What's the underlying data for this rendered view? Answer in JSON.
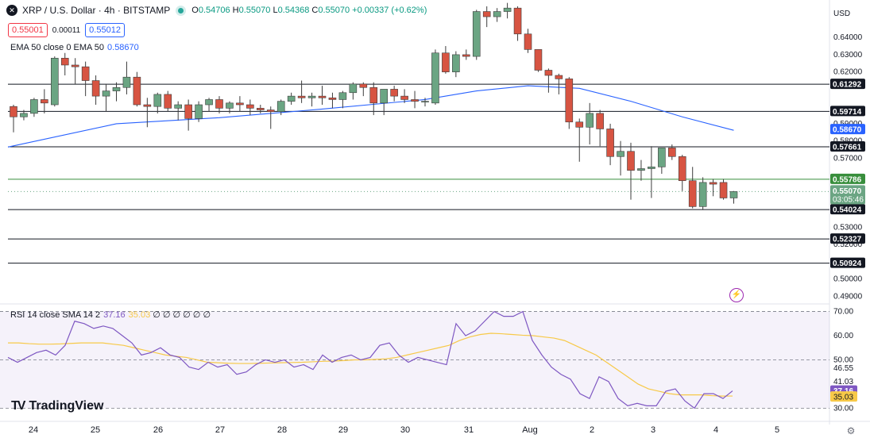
{
  "header": {
    "symbol_logo": "✕",
    "title": "XRP / U.S. Dollar · 4h · BITSTAMP",
    "ohlc": {
      "o_label": "O",
      "o": "0.54706",
      "h_label": "H",
      "h": "0.55070",
      "l_label": "L",
      "l": "0.54368",
      "c_label": "C",
      "c": "0.55070",
      "change": "+0.00337 (+0.62%)"
    },
    "bid": "0.55001",
    "spread": "0.00011",
    "ask": "0.55012",
    "live_color": "#26a69a"
  },
  "ema": {
    "label": "EMA 50 close 0 EMA 50",
    "value": "0.58670",
    "color": "#2962ff"
  },
  "rsi": {
    "label": "RSI 14 close SMA 14 2",
    "value": "37.16",
    "sma_value": "35.03",
    "placeholders": "∅ ∅ ∅ ∅ ∅ ∅",
    "rsi_color": "#7e57c2",
    "sma_color": "#f7c948"
  },
  "brand": {
    "name": "TradingView"
  },
  "price_axis": {
    "currency": "USD"
  },
  "colors": {
    "up": "#6ba583",
    "down": "#d75442",
    "support": "#131722",
    "green_line": "#388e3c"
  },
  "chart_data": [
    {
      "type": "candlestick",
      "title": "XRP / U.S. Dollar · 4h · BITSTAMP",
      "ylim": [
        0.487,
        0.658
      ],
      "x_ticks": [
        "24",
        "25",
        "26",
        "27",
        "28",
        "29",
        "30",
        "31",
        "Aug",
        "2",
        "3",
        "4",
        "5"
      ],
      "y_ticks": [
        "0.64000",
        "0.63000",
        "0.62000",
        "0.59000",
        "0.58000",
        "0.57000",
        "0.53000",
        "0.52000",
        "0.50000",
        "0.49000"
      ],
      "horizontal_levels": [
        {
          "value": 0.61292,
          "label": "0.61292",
          "color": "#131722",
          "bg": "#131722"
        },
        {
          "value": 0.59714,
          "label": "0.59714",
          "color": "#131722",
          "bg": "#131722"
        },
        {
          "value": 0.57661,
          "label": "0.57661",
          "color": "#131722",
          "bg": "#131722"
        },
        {
          "value": 0.55786,
          "label": "0.55786",
          "color": "#388e3c",
          "bg": "#388e3c"
        },
        {
          "value": 0.54024,
          "label": "0.54024",
          "color": "#131722",
          "bg": "#131722"
        },
        {
          "value": 0.52327,
          "label": "0.52327",
          "color": "#131722",
          "bg": "#131722"
        },
        {
          "value": 0.50924,
          "label": "0.50924",
          "color": "#131722",
          "bg": "#131722"
        }
      ],
      "ema_label": {
        "value": 0.5867,
        "label": "0.58670"
      },
      "last_price": {
        "value": 0.5507,
        "label": "0.55070",
        "countdown": "03:05:46"
      },
      "ohlc": [
        [
          0.6,
          0.601,
          0.585,
          0.594
        ],
        [
          0.594,
          0.598,
          0.592,
          0.596
        ],
        [
          0.596,
          0.605,
          0.594,
          0.604
        ],
        [
          0.604,
          0.61,
          0.596,
          0.602
        ],
        [
          0.601,
          0.629,
          0.6,
          0.628
        ],
        [
          0.628,
          0.631,
          0.618,
          0.624
        ],
        [
          0.624,
          0.628,
          0.613,
          0.623
        ],
        [
          0.623,
          0.626,
          0.606,
          0.615
        ],
        [
          0.615,
          0.618,
          0.601,
          0.606
        ],
        [
          0.606,
          0.613,
          0.597,
          0.609
        ],
        [
          0.609,
          0.614,
          0.603,
          0.611
        ],
        [
          0.611,
          0.626,
          0.607,
          0.617
        ],
        [
          0.617,
          0.62,
          0.6,
          0.601
        ],
        [
          0.601,
          0.605,
          0.588,
          0.6
        ],
        [
          0.6,
          0.608,
          0.596,
          0.607
        ],
        [
          0.607,
          0.609,
          0.597,
          0.599
        ],
        [
          0.599,
          0.603,
          0.592,
          0.601
        ],
        [
          0.601,
          0.604,
          0.586,
          0.593
        ],
        [
          0.593,
          0.603,
          0.591,
          0.601
        ],
        [
          0.601,
          0.605,
          0.597,
          0.604
        ],
        [
          0.604,
          0.606,
          0.596,
          0.599
        ],
        [
          0.599,
          0.603,
          0.596,
          0.602
        ],
        [
          0.602,
          0.606,
          0.597,
          0.601
        ],
        [
          0.601,
          0.604,
          0.595,
          0.599
        ],
        [
          0.599,
          0.601,
          0.596,
          0.598
        ],
        [
          0.598,
          0.6,
          0.587,
          0.597
        ],
        [
          0.597,
          0.604,
          0.595,
          0.603
        ],
        [
          0.603,
          0.608,
          0.601,
          0.606
        ],
        [
          0.606,
          0.615,
          0.602,
          0.605
        ],
        [
          0.605,
          0.608,
          0.6,
          0.606
        ],
        [
          0.606,
          0.612,
          0.601,
          0.605
        ],
        [
          0.605,
          0.608,
          0.599,
          0.604
        ],
        [
          0.604,
          0.609,
          0.599,
          0.608
        ],
        [
          0.608,
          0.614,
          0.604,
          0.613
        ],
        [
          0.613,
          0.614,
          0.606,
          0.611
        ],
        [
          0.611,
          0.614,
          0.595,
          0.602
        ],
        [
          0.602,
          0.61,
          0.595,
          0.61
        ],
        [
          0.61,
          0.612,
          0.603,
          0.606
        ],
        [
          0.606,
          0.61,
          0.602,
          0.604
        ],
        [
          0.604,
          0.609,
          0.599,
          0.603
        ],
        [
          0.603,
          0.605,
          0.6,
          0.603
        ],
        [
          0.602,
          0.633,
          0.601,
          0.631
        ],
        [
          0.631,
          0.635,
          0.619,
          0.62
        ],
        [
          0.62,
          0.632,
          0.617,
          0.63
        ],
        [
          0.63,
          0.633,
          0.627,
          0.629
        ],
        [
          0.629,
          0.656,
          0.627,
          0.655
        ],
        [
          0.655,
          0.658,
          0.646,
          0.652
        ],
        [
          0.652,
          0.657,
          0.649,
          0.655
        ],
        [
          0.655,
          0.66,
          0.651,
          0.657
        ],
        [
          0.657,
          0.658,
          0.638,
          0.642
        ],
        [
          0.642,
          0.645,
          0.631,
          0.633
        ],
        [
          0.633,
          0.633,
          0.62,
          0.621
        ],
        [
          0.621,
          0.622,
          0.608,
          0.618
        ],
        [
          0.618,
          0.619,
          0.607,
          0.616
        ],
        [
          0.616,
          0.617,
          0.587,
          0.591
        ],
        [
          0.591,
          0.593,
          0.568,
          0.588
        ],
        [
          0.588,
          0.602,
          0.578,
          0.596
        ],
        [
          0.596,
          0.598,
          0.577,
          0.587
        ],
        [
          0.587,
          0.59,
          0.566,
          0.571
        ],
        [
          0.571,
          0.58,
          0.56,
          0.574
        ],
        [
          0.574,
          0.579,
          0.546,
          0.563
        ],
        [
          0.563,
          0.569,
          0.557,
          0.564
        ],
        [
          0.564,
          0.577,
          0.547,
          0.565
        ],
        [
          0.565,
          0.576,
          0.561,
          0.576
        ],
        [
          0.576,
          0.578,
          0.569,
          0.571
        ],
        [
          0.571,
          0.572,
          0.551,
          0.557
        ],
        [
          0.557,
          0.565,
          0.541,
          0.542
        ],
        [
          0.542,
          0.559,
          0.54,
          0.556
        ],
        [
          0.556,
          0.558,
          0.548,
          0.555
        ],
        [
          0.556,
          0.558,
          0.546,
          0.547
        ],
        [
          0.547,
          0.551,
          0.5437,
          0.5507
        ]
      ],
      "ema50": [
        [
          0,
          0.5765
        ],
        [
          10,
          0.59
        ],
        [
          20,
          0.5935
        ],
        [
          30,
          0.5985
        ],
        [
          40,
          0.604
        ],
        [
          45,
          0.609
        ],
        [
          50,
          0.612
        ],
        [
          55,
          0.6105
        ],
        [
          60,
          0.603
        ],
        [
          65,
          0.594
        ],
        [
          70,
          0.5862
        ]
      ]
    },
    {
      "type": "line",
      "title": "RSI 14 close SMA 14 2",
      "ylim": [
        27.5,
        71.5
      ],
      "y_ticks": [
        "70.00",
        "60.00",
        "50.00",
        "46.55",
        "41.03",
        "30.00"
      ],
      "bands": {
        "upper": 70,
        "middle": 50,
        "lower": 30
      },
      "series": [
        {
          "name": "RSI",
          "values": [
            51,
            49,
            51,
            53,
            54,
            52,
            56,
            66,
            65,
            63,
            64,
            63,
            60,
            57,
            52,
            53,
            55,
            52,
            51,
            47,
            46,
            49,
            47,
            48,
            44,
            45,
            48,
            50,
            49,
            50,
            47,
            48,
            46,
            52,
            49,
            51,
            52,
            50,
            51,
            56,
            57,
            52,
            49,
            51,
            50,
            49,
            48,
            65,
            60,
            62,
            66,
            70,
            68,
            68,
            70,
            58,
            52,
            47,
            44,
            42,
            36,
            34,
            43,
            41,
            34,
            31,
            32,
            31,
            31,
            37,
            38,
            33,
            30,
            36,
            36,
            34,
            37.16
          ]
        },
        {
          "name": "SMA",
          "values": [
            57,
            57,
            56.7,
            56.5,
            56.5,
            56.6,
            56.8,
            57,
            57,
            57,
            56.5,
            56,
            55,
            54,
            53,
            52,
            51.5,
            51,
            50,
            49,
            48.8,
            48.6,
            48.5,
            48.5,
            48.6,
            48.7,
            48.8,
            48.9,
            49,
            49.2,
            49.4,
            49.5,
            49.7,
            50,
            50,
            50.2,
            50.4,
            51,
            52,
            53,
            54,
            55,
            56,
            58,
            59.5,
            60.5,
            61,
            60.8,
            60.5,
            60.2,
            60,
            59.5,
            59,
            58,
            56,
            54,
            52,
            49,
            46,
            43,
            40,
            38,
            37,
            36,
            35.5,
            35.5,
            35.5,
            35.2,
            35,
            35.03
          ]
        }
      ]
    }
  ]
}
